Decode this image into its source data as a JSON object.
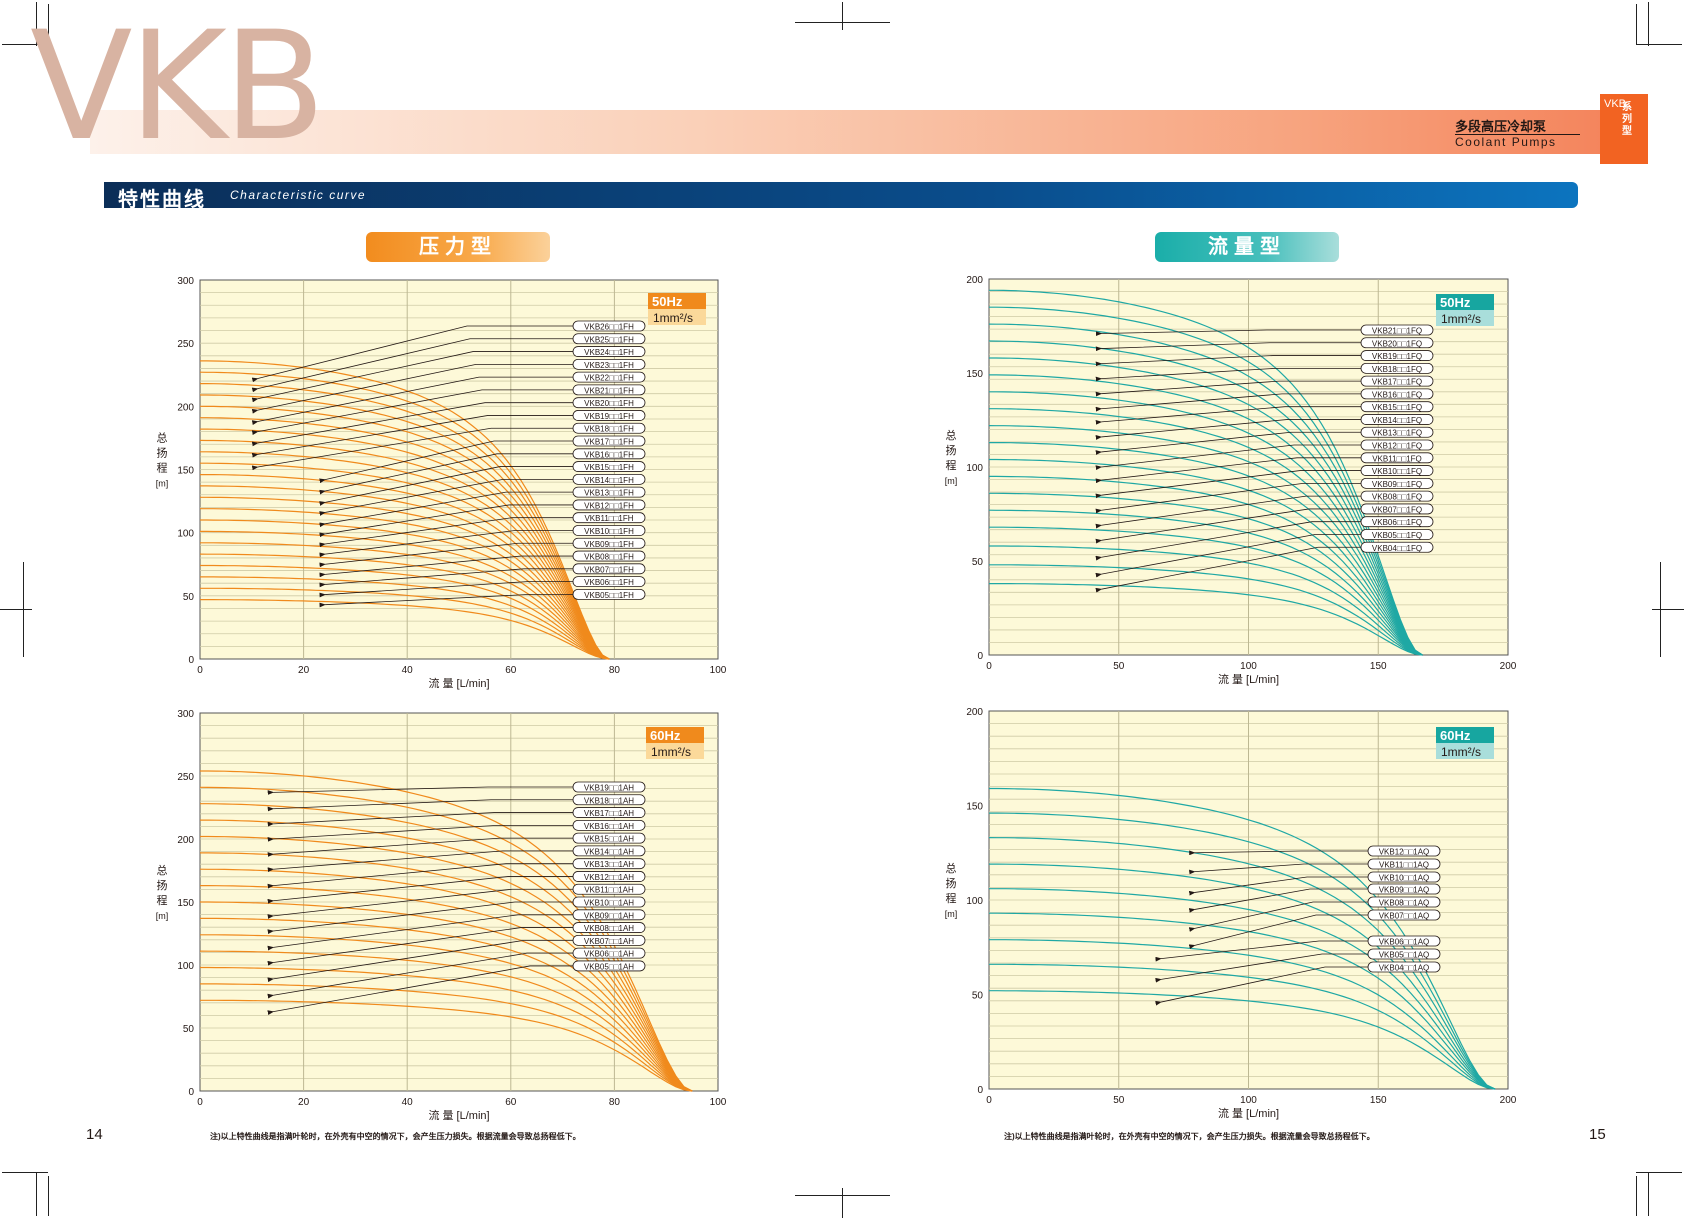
{
  "header": {
    "logo_text": "VKB",
    "product_cn": "多段高压冷却泵",
    "product_en": "Coolant Pumps",
    "tab_vkb": "VKB",
    "tab_text": "系列型"
  },
  "section": {
    "title_cn": "特性曲线",
    "title_en": "Characteristic curve"
  },
  "badges": {
    "pressure": "压力型",
    "flow": "流量型"
  },
  "pages": {
    "left": "14",
    "right": "15"
  },
  "note": "注)以上特性曲线是指满叶轮时，在外壳有中空的情况下，会产生压力损失。根据流量会导致总扬程低下。",
  "colors": {
    "orange": "#f08a1c",
    "teal": "#1fa8a4",
    "plot_bg": "#fdf9d8",
    "grid": "#cfcaa6"
  },
  "chart_data": [
    {
      "id": "p50",
      "type": "line",
      "xlabel": "流 量 [L/min]",
      "ylabel": "总扬程[m]",
      "xlim": [
        0,
        100
      ],
      "ylim": [
        0,
        300
      ],
      "xticks": [
        0,
        20,
        40,
        60,
        80,
        100
      ],
      "yticks": [
        0,
        50,
        100,
        150,
        200,
        250,
        300
      ],
      "badge": {
        "freq": "50Hz",
        "visc": "1mm²/s",
        "style": "orange"
      },
      "shutoff_flow": 79,
      "series": [
        {
          "name": "VKB26□□1FH",
          "shutoff": 236,
          "target_x": 10,
          "target_y": 222
        },
        {
          "name": "VKB25□□1FH",
          "shutoff": 227,
          "target_x": 10,
          "target_y": 214
        },
        {
          "name": "VKB24□□1FH",
          "shutoff": 218,
          "target_x": 10,
          "target_y": 206
        },
        {
          "name": "VKB23□□1FH",
          "shutoff": 209,
          "target_x": 10,
          "target_y": 197
        },
        {
          "name": "VKB22□□1FH",
          "shutoff": 200,
          "target_x": 10,
          "target_y": 188
        },
        {
          "name": "VKB21□□1FH",
          "shutoff": 191,
          "target_x": 10,
          "target_y": 180
        },
        {
          "name": "VKB20□□1FH",
          "shutoff": 182,
          "target_x": 10,
          "target_y": 171
        },
        {
          "name": "VKB19□□1FH",
          "shutoff": 173,
          "target_x": 10,
          "target_y": 162
        },
        {
          "name": "VKB18□□1FH",
          "shutoff": 164,
          "target_x": 10,
          "target_y": 152
        },
        {
          "name": "VKB17□□1FH",
          "shutoff": 155,
          "target_x": 23,
          "target_y": 142
        },
        {
          "name": "VKB16□□1FH",
          "shutoff": 146,
          "target_x": 23,
          "target_y": 133
        },
        {
          "name": "VKB15□□1FH",
          "shutoff": 137,
          "target_x": 23,
          "target_y": 124
        },
        {
          "name": "VKB14□□1FH",
          "shutoff": 128,
          "target_x": 23,
          "target_y": 116
        },
        {
          "name": "VKB13□□1FH",
          "shutoff": 119,
          "target_x": 23,
          "target_y": 107
        },
        {
          "name": "VKB12□□1FH",
          "shutoff": 110,
          "target_x": 23,
          "target_y": 99
        },
        {
          "name": "VKB11□□1FH",
          "shutoff": 101,
          "target_x": 23,
          "target_y": 91
        },
        {
          "name": "VKB10□□1FH",
          "shutoff": 92,
          "target_x": 23,
          "target_y": 83
        },
        {
          "name": "VKB09□□1FH",
          "shutoff": 83,
          "target_x": 23,
          "target_y": 75
        },
        {
          "name": "VKB08□□1FH",
          "shutoff": 74,
          "target_x": 23,
          "target_y": 67
        },
        {
          "name": "VKB07□□1FH",
          "shutoff": 65,
          "target_x": 23,
          "target_y": 59
        },
        {
          "name": "VKB06□□1FH",
          "shutoff": 56,
          "target_x": 23,
          "target_y": 51
        },
        {
          "name": "VKB05□□1FH",
          "shutoff": 47,
          "target_x": 23,
          "target_y": 43
        }
      ]
    },
    {
      "id": "f50",
      "type": "line",
      "xlabel": "流 量 [L/min]",
      "ylabel": "总扬程[m]",
      "xlim": [
        0,
        200
      ],
      "ylim": [
        0,
        200
      ],
      "xticks": [
        0,
        50,
        100,
        150,
        200
      ],
      "yticks": [
        0,
        50,
        100,
        150,
        200
      ],
      "badge": {
        "freq": "50Hz",
        "visc": "1mm²/s",
        "style": "teal"
      },
      "shutoff_flow": 167,
      "series": [
        {
          "name": "VKB21□□1FQ",
          "shutoff": 194,
          "target_x": 41,
          "target_y": 171
        },
        {
          "name": "VKB20□□1FQ",
          "shutoff": 185,
          "target_x": 41,
          "target_y": 163
        },
        {
          "name": "VKB19□□1FQ",
          "shutoff": 176,
          "target_x": 41,
          "target_y": 155
        },
        {
          "name": "VKB18□□1FQ",
          "shutoff": 167,
          "target_x": 41,
          "target_y": 147
        },
        {
          "name": "VKB17□□1FQ",
          "shutoff": 158,
          "target_x": 41,
          "target_y": 139
        },
        {
          "name": "VKB16□□1FQ",
          "shutoff": 149,
          "target_x": 41,
          "target_y": 131
        },
        {
          "name": "VKB15□□1FQ",
          "shutoff": 140,
          "target_x": 41,
          "target_y": 124
        },
        {
          "name": "VKB14□□1FQ",
          "shutoff": 131,
          "target_x": 41,
          "target_y": 116
        },
        {
          "name": "VKB13□□1FQ",
          "shutoff": 122,
          "target_x": 41,
          "target_y": 108
        },
        {
          "name": "VKB12□□1FQ",
          "shutoff": 113,
          "target_x": 41,
          "target_y": 100
        },
        {
          "name": "VKB11□□1FQ",
          "shutoff": 104,
          "target_x": 41,
          "target_y": 93
        },
        {
          "name": "VKB10□□1FQ",
          "shutoff": 95,
          "target_x": 41,
          "target_y": 85
        },
        {
          "name": "VKB09□□1FQ",
          "shutoff": 86,
          "target_x": 41,
          "target_y": 77
        },
        {
          "name": "VKB08□□1FQ",
          "shutoff": 77,
          "target_x": 41,
          "target_y": 69
        },
        {
          "name": "VKB07□□1FQ",
          "shutoff": 68,
          "target_x": 41,
          "target_y": 61
        },
        {
          "name": "VKB06□□1FQ",
          "shutoff": 58,
          "target_x": 41,
          "target_y": 52
        },
        {
          "name": "VKB05□□1FQ",
          "shutoff": 48,
          "target_x": 41,
          "target_y": 43
        },
        {
          "name": "VKB04□□1FQ",
          "shutoff": 38,
          "target_x": 41,
          "target_y": 35
        }
      ]
    },
    {
      "id": "p60",
      "type": "line",
      "xlabel": "流 量 [L/min]",
      "ylabel": "总扬程[m]",
      "xlim": [
        0,
        100
      ],
      "ylim": [
        0,
        300
      ],
      "xticks": [
        0,
        20,
        40,
        60,
        80,
        100
      ],
      "yticks": [
        0,
        50,
        100,
        150,
        200,
        250,
        300
      ],
      "badge": {
        "freq": "60Hz",
        "visc": "1mm²/s",
        "style": "orange"
      },
      "shutoff_flow": 95,
      "series": [
        {
          "name": "VKB19□□1AH",
          "shutoff": 254,
          "target_x": 13,
          "target_y": 237
        },
        {
          "name": "VKB18□□1AH",
          "shutoff": 241,
          "target_x": 13,
          "target_y": 224
        },
        {
          "name": "VKB17□□1AH",
          "shutoff": 228,
          "target_x": 13,
          "target_y": 212
        },
        {
          "name": "VKB16□□1AH",
          "shutoff": 215,
          "target_x": 13,
          "target_y": 200
        },
        {
          "name": "VKB15□□1AH",
          "shutoff": 202,
          "target_x": 13,
          "target_y": 188
        },
        {
          "name": "VKB14□□1AH",
          "shutoff": 189,
          "target_x": 13,
          "target_y": 176
        },
        {
          "name": "VKB13□□1AH",
          "shutoff": 176,
          "target_x": 13,
          "target_y": 163
        },
        {
          "name": "VKB12□□1AH",
          "shutoff": 163,
          "target_x": 13,
          "target_y": 151
        },
        {
          "name": "VKB11□□1AH",
          "shutoff": 150,
          "target_x": 13,
          "target_y": 139
        },
        {
          "name": "VKB10□□1AH",
          "shutoff": 137,
          "target_x": 13,
          "target_y": 127
        },
        {
          "name": "VKB09□□1AH",
          "shutoff": 124,
          "target_x": 13,
          "target_y": 114
        },
        {
          "name": "VKB08□□1AH",
          "shutoff": 111,
          "target_x": 13,
          "target_y": 102
        },
        {
          "name": "VKB07□□1AH",
          "shutoff": 98,
          "target_x": 13,
          "target_y": 89
        },
        {
          "name": "VKB06□□1AH",
          "shutoff": 85,
          "target_x": 13,
          "target_y": 76
        },
        {
          "name": "VKB05□□1AH",
          "shutoff": 72,
          "target_x": 13,
          "target_y": 63
        }
      ]
    },
    {
      "id": "f60",
      "type": "line",
      "xlabel": "流 量 [L/min]",
      "ylabel": "总扬程[m]",
      "xlim": [
        0,
        200
      ],
      "ylim": [
        0,
        200
      ],
      "xticks": [
        0,
        50,
        100,
        150,
        200
      ],
      "yticks": [
        0,
        50,
        100,
        150,
        200
      ],
      "badge": {
        "freq": "60Hz",
        "visc": "1mm²/s",
        "style": "teal"
      },
      "shutoff_flow": 195,
      "series": [
        {
          "name": "VKB12□□1AQ",
          "shutoff": 159,
          "target_x": 77,
          "target_y": 125
        },
        {
          "name": "VKB11□□1AQ",
          "shutoff": 146,
          "target_x": 77,
          "target_y": 115
        },
        {
          "name": "VKB10□□1AQ",
          "shutoff": 133,
          "target_x": 77,
          "target_y": 104
        },
        {
          "name": "VKB09□□1AQ",
          "shutoff": 119,
          "target_x": 77,
          "target_y": 95
        },
        {
          "name": "VKB08□□1AQ",
          "shutoff": 106,
          "target_x": 77,
          "target_y": 85
        },
        {
          "name": "VKB07□□1AQ",
          "shutoff": 93,
          "target_x": 77,
          "target_y": 76
        },
        {
          "name": "VKB06□□1AQ",
          "shutoff": 79,
          "target_x": 64,
          "target_y": 69
        },
        {
          "name": "VKB05□□1AQ",
          "shutoff": 66,
          "target_x": 64,
          "target_y": 58
        },
        {
          "name": "VKB04□□1AQ",
          "shutoff": 52,
          "target_x": 64,
          "target_y": 46
        }
      ]
    }
  ]
}
